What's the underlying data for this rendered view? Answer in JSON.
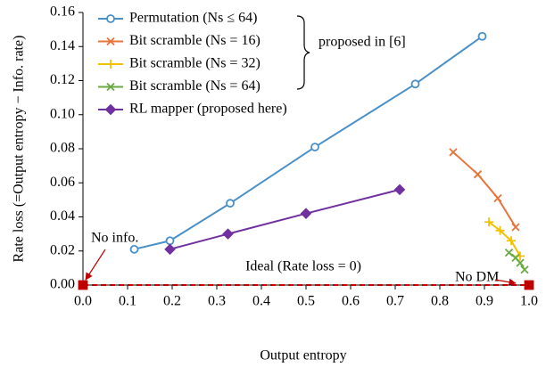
{
  "chart_data": {
    "type": "line",
    "x_label": "Output entropy",
    "y_label": "Rate loss (=Output entropy − Info. rate)",
    "xlim": [
      0,
      1
    ],
    "xticks": [
      {
        "value": 0,
        "label": "0.0"
      },
      0.1,
      0.2,
      0.3,
      0.4,
      0.5,
      0.6,
      0.7,
      0.8,
      0.9,
      {
        "value": 1,
        "label": "1.0"
      }
    ],
    "ylim": [
      0,
      0.16
    ],
    "yticks": [
      {
        "value": 0,
        "label": "0.00"
      },
      {
        "value": 0.02,
        "label": "0.02"
      },
      {
        "value": 0.04,
        "label": "0.04"
      },
      {
        "value": 0.06,
        "label": "0.06"
      },
      {
        "value": 0.08,
        "label": "0.08"
      },
      {
        "value": 0.1,
        "label": "0.10"
      },
      {
        "value": 0.12,
        "label": "0.12"
      },
      {
        "value": 0.14,
        "label": "0.14"
      },
      {
        "value": 0.16,
        "label": "0.16"
      }
    ],
    "grid": false,
    "legend": "upper left",
    "series": [
      {
        "name": "Permutation (Ns ≤ 64)",
        "color": "#4a90c8",
        "marker": "circle",
        "x": [
          0.115,
          0.195,
          0.33,
          0.52,
          0.745,
          0.895
        ],
        "values": [
          0.021,
          0.026,
          0.048,
          0.081,
          0.118,
          0.146
        ]
      },
      {
        "name": "Bit scramble (Ns = 16)",
        "color": "#e8743b",
        "marker": "x",
        "x": [
          0.83,
          0.885,
          0.93,
          0.97
        ],
        "values": [
          0.078,
          0.065,
          0.051,
          0.034
        ]
      },
      {
        "name": "Bit scramble (Ns = 32)",
        "color": "#f5c000",
        "marker": "plus",
        "x": [
          0.91,
          0.935,
          0.96,
          0.98
        ],
        "values": [
          0.037,
          0.032,
          0.026,
          0.017
        ]
      },
      {
        "name": "Bit scramble (Ns = 64)",
        "color": "#6aaa45",
        "marker": "x",
        "x": [
          0.955,
          0.97,
          0.98,
          0.99
        ],
        "values": [
          0.019,
          0.016,
          0.013,
          0.009
        ]
      },
      {
        "name": "RL mapper (proposed here)",
        "color": "#7030a0",
        "marker": "diamond",
        "x": [
          0.195,
          0.325,
          0.5,
          0.71
        ],
        "values": [
          0.021,
          0.03,
          0.042,
          0.056
        ]
      }
    ],
    "reference": {
      "label": "Ideal (Rate loss = 0)",
      "color": "#c00000",
      "x": [
        0,
        1
      ],
      "values": [
        0,
        0
      ]
    },
    "annotations": {
      "brace": "proposed in [6]",
      "no_info": "No info.",
      "no_dm": "No DM"
    }
  }
}
